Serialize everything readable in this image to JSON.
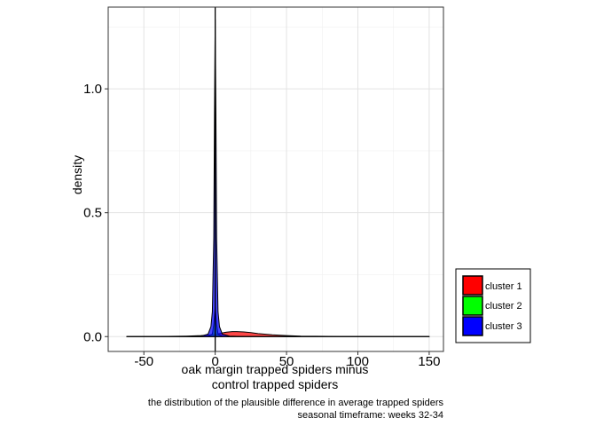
{
  "chart_data": {
    "type": "area",
    "title": "",
    "xlabel": [
      "oak margin trapped spiders minus",
      "control trapped spiders"
    ],
    "ylabel": "density",
    "caption": [
      "the distribution of the plausible difference in average trapped spiders",
      "seasonal timeframe: weeks 32-34"
    ],
    "xlim": [
      -75,
      160
    ],
    "ylim": [
      -0.06,
      1.33
    ],
    "x_ticks": [
      -50,
      0,
      50,
      100,
      150
    ],
    "x_tick_labels": [
      "-50",
      "0",
      "50",
      "100",
      "150"
    ],
    "y_ticks": [
      0.0,
      0.5,
      1.0
    ],
    "y_tick_labels": [
      "0.0",
      "0.5",
      "1.0"
    ],
    "grid": true,
    "legend_position": "right",
    "vline_x": 0,
    "series": [
      {
        "name": "cluster 1",
        "color": "#FF0000",
        "x": [
          -62,
          -40,
          -20,
          -10,
          -5,
          0,
          2,
          5,
          8,
          12,
          15,
          20,
          25,
          30,
          40,
          50,
          60,
          80,
          100,
          120,
          150
        ],
        "y": [
          0.0,
          0.0005,
          0.002,
          0.004,
          0.006,
          0.008,
          0.011,
          0.015,
          0.018,
          0.02,
          0.02,
          0.019,
          0.016,
          0.012,
          0.007,
          0.004,
          0.002,
          0.0008,
          0.0003,
          0.0001,
          0.0
        ]
      },
      {
        "name": "cluster 2",
        "color": "#00FF00",
        "x": [
          -62,
          -20,
          -5,
          -2,
          -1,
          0,
          1,
          2,
          5,
          20,
          150
        ],
        "y": [
          0.0,
          0.0,
          0.001,
          0.01,
          0.05,
          0.12,
          0.05,
          0.01,
          0.001,
          0.0,
          0.0
        ]
      },
      {
        "name": "cluster 3",
        "color": "#0000FF",
        "x": [
          -62,
          -20,
          -10,
          -5,
          -3,
          -2,
          -1,
          -0.5,
          0,
          0.5,
          1,
          2,
          3,
          5,
          10,
          20,
          150
        ],
        "y": [
          0.0,
          0.0,
          0.002,
          0.01,
          0.04,
          0.1,
          0.4,
          0.9,
          1.28,
          0.9,
          0.4,
          0.1,
          0.04,
          0.01,
          0.002,
          0.0,
          0.0
        ]
      }
    ]
  }
}
